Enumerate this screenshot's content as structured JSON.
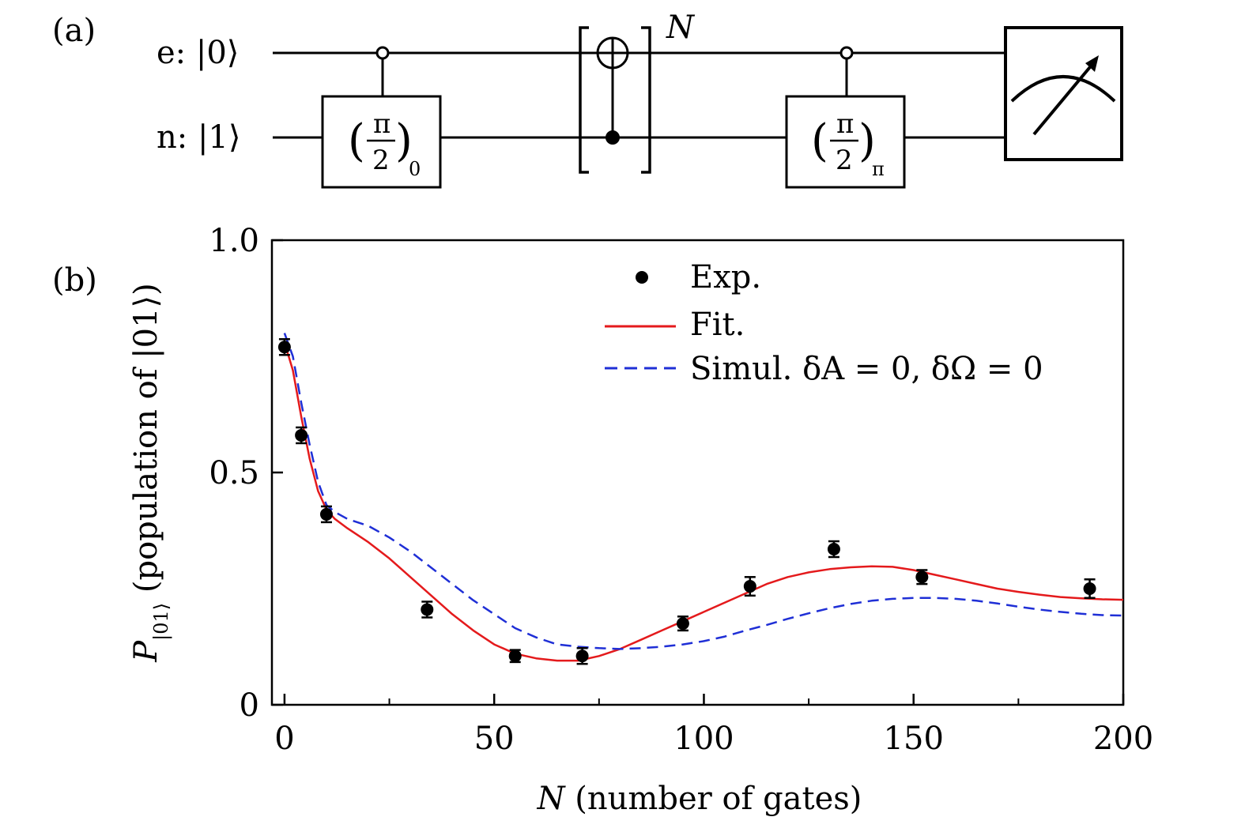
{
  "panel_a": {
    "label": "(a)",
    "wire_top_label": "e: |0⟩",
    "wire_bottom_label": "n: |1⟩",
    "gate1": {
      "num": "π",
      "den": "2",
      "sub": "0"
    },
    "repeat_label": "N",
    "gate2": {
      "num": "π",
      "den": "2",
      "sub": "π"
    }
  },
  "panel_b": {
    "label": "(b)"
  },
  "chart_data": {
    "type": "scatter",
    "xlabel": "N (number of gates)",
    "ylabel": "P|01⟩ (population of |01⟩)",
    "xlim": [
      -3,
      200
    ],
    "ylim": [
      0,
      1.0
    ],
    "x_ticks": [
      0,
      50,
      100,
      150,
      200
    ],
    "x_tick_labels": [
      "0",
      "50",
      "100",
      "150",
      "200"
    ],
    "x_minor_ticks": [
      25,
      75,
      125,
      175
    ],
    "y_ticks": [
      0,
      0.5,
      1.0
    ],
    "y_tick_labels": [
      "0",
      "0.5",
      "1.0"
    ],
    "legend_position": "top-right",
    "series": [
      {
        "name": "Exp.",
        "kind": "points",
        "color": "#000000",
        "x": [
          0,
          4,
          10,
          34,
          55,
          71,
          95,
          111,
          131,
          152,
          192
        ],
        "y": [
          0.77,
          0.58,
          0.41,
          0.205,
          0.105,
          0.105,
          0.175,
          0.255,
          0.335,
          0.275,
          0.25
        ],
        "err": [
          0.017,
          0.017,
          0.017,
          0.017,
          0.013,
          0.017,
          0.015,
          0.02,
          0.017,
          0.015,
          0.02
        ]
      },
      {
        "name": "Fit.",
        "kind": "line",
        "color": "#e41a1c",
        "x": [
          0,
          2,
          4,
          6,
          8,
          10,
          12,
          15,
          20,
          25,
          30,
          35,
          40,
          45,
          50,
          55,
          60,
          65,
          70,
          75,
          80,
          85,
          90,
          95,
          100,
          105,
          110,
          115,
          120,
          125,
          130,
          135,
          140,
          145,
          150,
          155,
          160,
          165,
          170,
          175,
          180,
          185,
          190,
          195,
          200
        ],
        "y": [
          0.78,
          0.72,
          0.62,
          0.53,
          0.46,
          0.42,
          0.4,
          0.38,
          0.35,
          0.315,
          0.275,
          0.235,
          0.195,
          0.16,
          0.13,
          0.11,
          0.1,
          0.095,
          0.095,
          0.105,
          0.12,
          0.14,
          0.16,
          0.18,
          0.2,
          0.22,
          0.24,
          0.26,
          0.275,
          0.285,
          0.292,
          0.296,
          0.298,
          0.297,
          0.29,
          0.28,
          0.27,
          0.26,
          0.25,
          0.243,
          0.237,
          0.232,
          0.229,
          0.227,
          0.226
        ]
      },
      {
        "name": "Simul. δA = 0, δΩ = 0",
        "kind": "dashed",
        "color": "#1f2fd6",
        "x": [
          0,
          2,
          4,
          6,
          8,
          10,
          12,
          15,
          20,
          25,
          30,
          35,
          40,
          45,
          50,
          55,
          60,
          65,
          70,
          75,
          80,
          85,
          90,
          95,
          100,
          105,
          110,
          115,
          120,
          125,
          130,
          135,
          140,
          145,
          150,
          155,
          160,
          165,
          170,
          175,
          180,
          185,
          190,
          195,
          200
        ],
        "y": [
          0.8,
          0.75,
          0.65,
          0.56,
          0.48,
          0.43,
          0.415,
          0.4,
          0.385,
          0.36,
          0.33,
          0.295,
          0.26,
          0.225,
          0.195,
          0.165,
          0.145,
          0.13,
          0.125,
          0.122,
          0.12,
          0.122,
          0.125,
          0.13,
          0.137,
          0.147,
          0.16,
          0.172,
          0.185,
          0.197,
          0.208,
          0.217,
          0.224,
          0.228,
          0.23,
          0.23,
          0.228,
          0.224,
          0.218,
          0.211,
          0.205,
          0.2,
          0.196,
          0.193,
          0.192
        ]
      }
    ]
  },
  "legend": {
    "exp_label": "Exp.",
    "fit_label": "Fit.",
    "sim_label": "Simul. δA = 0, δΩ = 0"
  }
}
